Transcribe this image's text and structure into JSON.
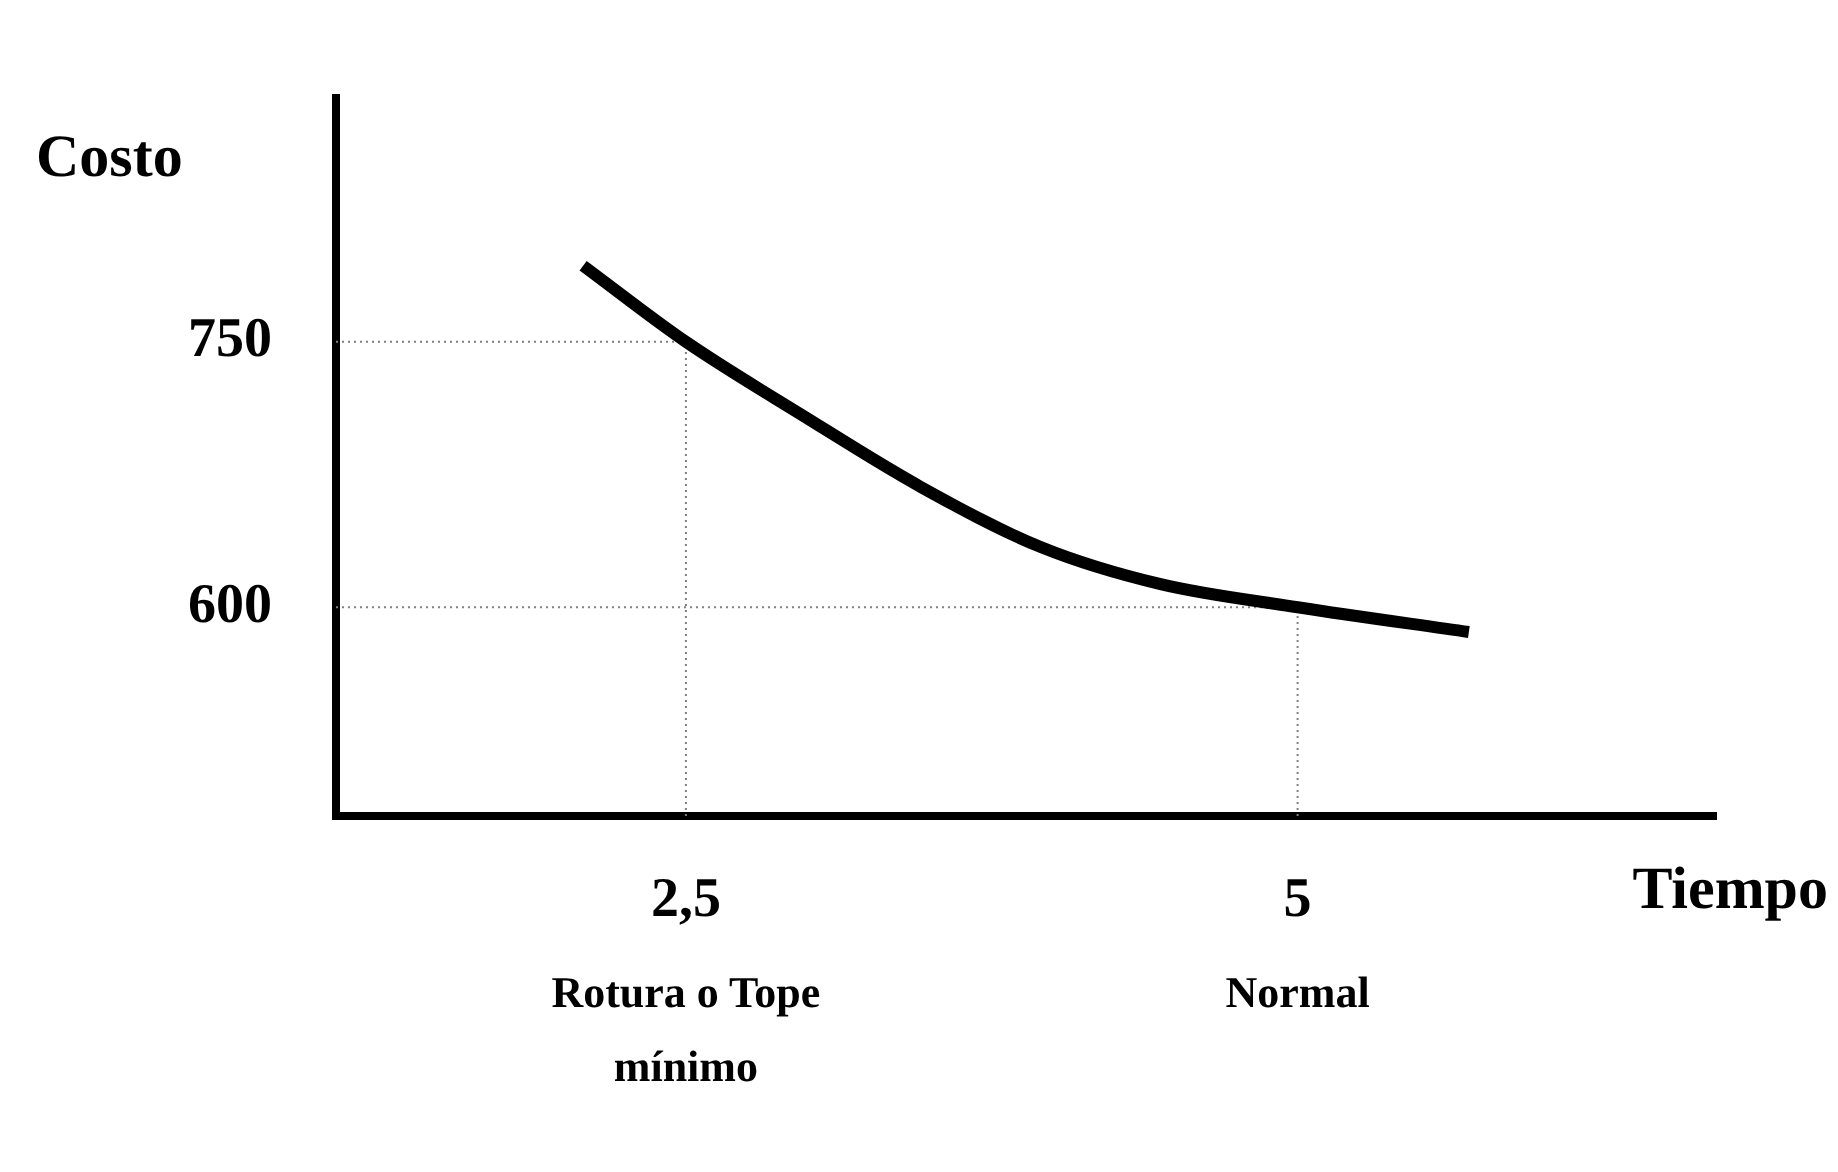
{
  "chart_data": {
    "type": "line",
    "xlabel": "Tiempo",
    "ylabel": "Costo",
    "x": [
      2.08,
      2.5,
      2.97,
      3.46,
      3.95,
      4.44,
      5,
      5.7
    ],
    "series": [
      {
        "color": "#000000",
        "values": [
          793,
          750,
          709,
          668,
          634,
          613,
          600,
          586
        ]
      }
    ],
    "xlim": [
      1.07,
      6.71
    ],
    "ylim": [
      482,
      888
    ],
    "xticks": [
      {
        "value": 2.5,
        "label": "2,5"
      },
      5
    ],
    "yticks": [
      600,
      750
    ],
    "ref_lines": [
      {
        "axis": "x",
        "value": 2.5,
        "color": "#808080",
        "line_style": "dotted"
      },
      {
        "axis": "y",
        "value": 750,
        "color": "#808080",
        "line_style": "dotted"
      },
      {
        "axis": "x",
        "value": 5,
        "color": "#808080",
        "line_style": "dotted"
      },
      {
        "axis": "y",
        "value": 600,
        "color": "#808080",
        "line_style": "dotted"
      }
    ],
    "annotations": [
      "Rotura o Tope mínimo",
      "Normal"
    ],
    "grid": false,
    "legend": false,
    "marker": "none",
    "line_style": "solid"
  }
}
